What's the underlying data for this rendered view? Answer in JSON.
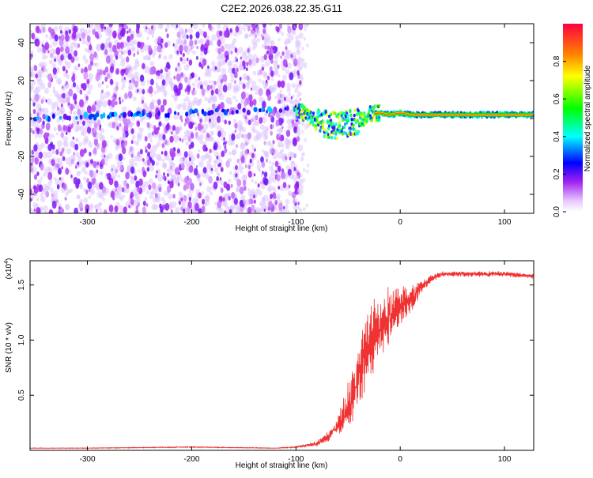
{
  "figure_title": "C2E2.2026.038.22.35.G11",
  "chart_data": [
    {
      "type": "heatmap",
      "xlabel": "Height of straight line (km)",
      "ylabel": "Frequency (Hz)",
      "xlim": [
        -355,
        128
      ],
      "ylim": [
        -50,
        50
      ],
      "xticks": [
        -300,
        -200,
        -100,
        0,
        100
      ],
      "yticks": [
        -40,
        -20,
        0,
        20,
        40
      ],
      "colorbar": {
        "label": "Normalized spectral amplitude",
        "range": [
          0,
          1
        ],
        "ticks": [
          0.0,
          0.2,
          0.4,
          0.6,
          0.8
        ],
        "tick_labels": [
          "0.0",
          "0.2",
          "0.4",
          "0.6",
          "0.8"
        ]
      },
      "noise_region": {
        "x_range": [
          -355,
          -95
        ],
        "y_range": [
          -50,
          50
        ]
      },
      "carrier_line": [
        {
          "x": -355,
          "y": 0
        },
        {
          "x": -100,
          "y": 5
        },
        {
          "x": -90,
          "y": 2
        },
        {
          "x": -80,
          "y": -2
        },
        {
          "x": -70,
          "y": -3
        },
        {
          "x": -60,
          "y": -4
        },
        {
          "x": -50,
          "y": -3
        },
        {
          "x": -40,
          "y": -1
        },
        {
          "x": -30,
          "y": 2
        },
        {
          "x": -20,
          "y": 3
        },
        {
          "x": -10,
          "y": 2
        },
        {
          "x": 0,
          "y": 3
        },
        {
          "x": 10,
          "y": 2
        },
        {
          "x": 128,
          "y": 2
        }
      ],
      "colorscale": [
        "#ffffff",
        "#a020f0",
        "#0000ff",
        "#00ffff",
        "#00ff00",
        "#ffff00",
        "#ff8000",
        "#ff0000"
      ]
    },
    {
      "type": "line",
      "xlabel": "Height of straight line (km)",
      "ylabel": "SNR (10 * v/v)",
      "y_multiplier": "(x10",
      "y_multiplier_exp": "4",
      "y_multiplier_close": ")",
      "xlim": [
        -355,
        128
      ],
      "ylim": [
        0,
        1.72
      ],
      "xticks": [
        -300,
        -200,
        -100,
        0,
        100
      ],
      "yticks": [
        0.5,
        1.0,
        1.5
      ],
      "ytick_labels": [
        "0.5",
        "1.0",
        "1.5"
      ],
      "color": "#f03232",
      "series": [
        {
          "x": [
            -355,
            -300,
            -200,
            -120,
            -100,
            -80,
            -70,
            -60,
            -50,
            -45,
            -40,
            -35,
            -30,
            -25,
            -20,
            -15,
            -10,
            -5,
            0,
            5,
            10,
            15,
            20,
            25,
            30,
            40,
            50,
            60,
            80,
            100,
            128
          ],
          "values": [
            0.02,
            0.02,
            0.03,
            0.02,
            0.03,
            0.06,
            0.12,
            0.22,
            0.38,
            0.5,
            0.65,
            0.85,
            0.95,
            1.05,
            1.1,
            1.15,
            1.2,
            1.25,
            1.3,
            1.35,
            1.38,
            1.42,
            1.48,
            1.52,
            1.56,
            1.6,
            1.6,
            1.6,
            1.6,
            1.6,
            1.58
          ],
          "fluctuation": [
            0.005,
            0.005,
            0.008,
            0.005,
            0.01,
            0.04,
            0.08,
            0.12,
            0.35,
            0.45,
            0.5,
            0.55,
            0.55,
            0.5,
            0.5,
            0.45,
            0.45,
            0.35,
            0.3,
            0.25,
            0.2,
            0.15,
            0.1,
            0.08,
            0.06,
            0.04,
            0.04,
            0.04,
            0.04,
            0.04,
            0.04
          ]
        }
      ]
    }
  ]
}
